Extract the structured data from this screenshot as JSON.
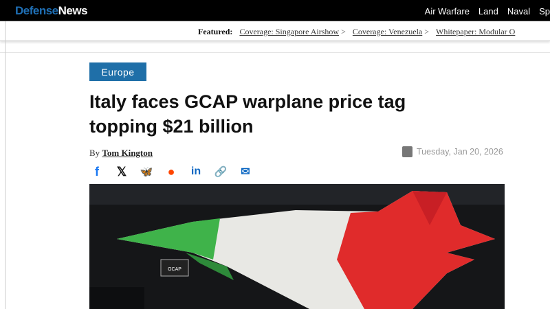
{
  "header": {
    "logo_part1": "Defense",
    "logo_part2": "News",
    "nav": [
      "Air Warfare",
      "Land",
      "Naval",
      "Sp"
    ]
  },
  "featured": {
    "label": "Featured:",
    "links": [
      "Coverage: Singapore Airshow",
      "Coverage: Venezuela",
      "Whitepaper: Modular O"
    ],
    "arrow": ">"
  },
  "article": {
    "category": "Europe",
    "title": "Italy faces GCAP warplane price tag topping $21 billion",
    "by": "By",
    "author": "Tom Kington",
    "date": "Tuesday, Jan 20, 2026",
    "share": [
      {
        "icon": "facebook-icon",
        "glyph": "f",
        "color": "#1877f2"
      },
      {
        "icon": "x-icon",
        "glyph": "𝕏",
        "color": "#111"
      },
      {
        "icon": "bluesky-icon",
        "glyph": "🦋",
        "color": "#1185fe"
      },
      {
        "icon": "reddit-icon",
        "glyph": "●",
        "color": "#ff4500"
      },
      {
        "icon": "linkedin-icon",
        "glyph": "in",
        "color": "#0a66c2"
      },
      {
        "icon": "link-icon",
        "glyph": "🔗",
        "color": "#0a66c2"
      },
      {
        "icon": "email-icon",
        "glyph": "✉",
        "color": "#0a66c2"
      }
    ],
    "hero_sign": "GCAP"
  }
}
